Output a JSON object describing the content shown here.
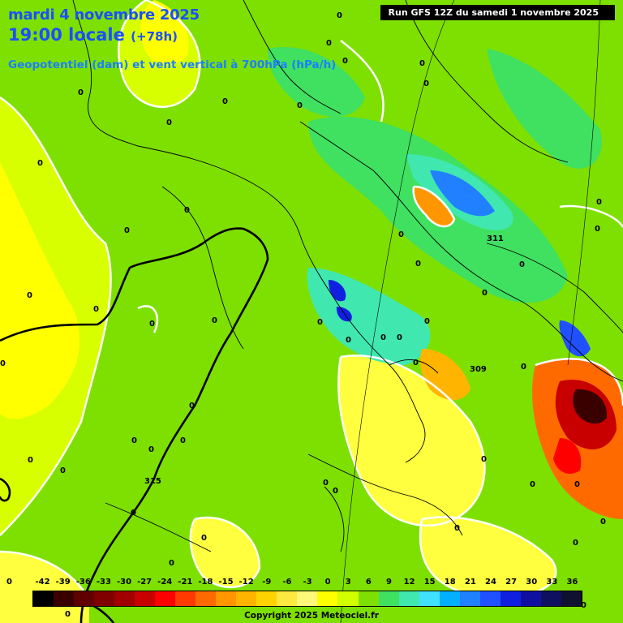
{
  "header": {
    "date": "mardi 4 novembre 2025",
    "time": "19:00 locale",
    "lead": "(+78h)",
    "subtitle": "Geopotentiel (dam) et vent vertical à 700hPa (hPa/h)",
    "run": "Run GFS 12Z du samedi 1 novembre 2025"
  },
  "legend": {
    "ticks": [
      "-42",
      "-39",
      "-36",
      "-33",
      "-30",
      "-27",
      "-24",
      "-21",
      "-18",
      "-15",
      "-12",
      "-9",
      "-6",
      "-3",
      "0",
      "3",
      "6",
      "9",
      "12",
      "15",
      "18",
      "21",
      "24",
      "27",
      "30",
      "33",
      "36"
    ],
    "colors": [
      "#000000",
      "#3a0000",
      "#600000",
      "#800000",
      "#a00000",
      "#c80000",
      "#ff0000",
      "#ff3a00",
      "#ff6a00",
      "#ff9600",
      "#ffb400",
      "#ffd200",
      "#ffe840",
      "#fff87a",
      "#ffff00",
      "#d2ff00",
      "#7ee000",
      "#40e060",
      "#40e8b0",
      "#40e0ff",
      "#00b0ff",
      "#2080ff",
      "#2050ff",
      "#1020e0",
      "#1010a0",
      "#101060",
      "#101030"
    ]
  },
  "geopotential_labels": [
    "315",
    "311",
    "309"
  ],
  "zero_label": "0",
  "copyright": "Copyright 2025 Meteociel.fr"
}
